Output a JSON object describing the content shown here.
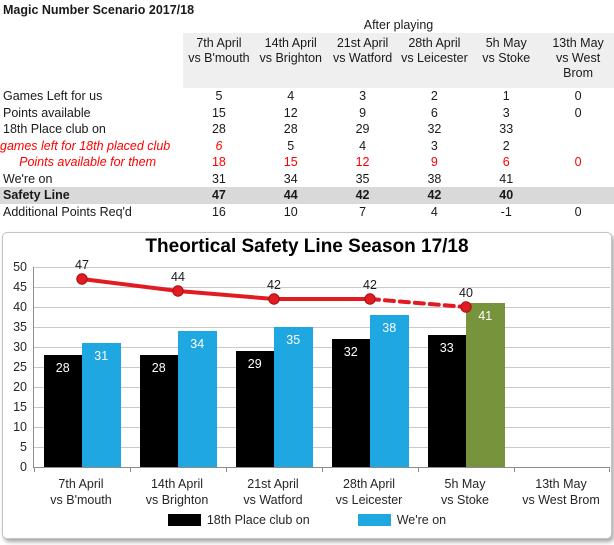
{
  "sheet": {
    "title": "Magic Number Scenario 2017/18"
  },
  "table": {
    "group_header": "After playing",
    "columns": [
      [
        "7th April",
        "vs B'mouth"
      ],
      [
        "14th April",
        "vs Brighton"
      ],
      [
        "21st April",
        "vs Watford"
      ],
      [
        "28th April",
        "vs Leicester"
      ],
      [
        "5h May",
        "vs Stoke"
      ],
      [
        "13th May",
        "vs West",
        "Brom"
      ]
    ],
    "rows": [
      {
        "label": "Games Left for us",
        "values": [
          "5",
          "4",
          "3",
          "2",
          "1",
          "0"
        ]
      },
      {
        "label": "Points available",
        "values": [
          "15",
          "12",
          "9",
          "6",
          "3",
          "0"
        ]
      },
      {
        "label": "18th Place club on",
        "values": [
          "28",
          "28",
          "29",
          "32",
          "33",
          ""
        ]
      },
      {
        "label": "games left for 18th placed club",
        "label_style": "red-italic",
        "values": [
          "6",
          "5",
          "4",
          "3",
          "2",
          ""
        ],
        "value_styles": [
          "red-italic",
          "",
          "",
          "",
          "",
          ""
        ]
      },
      {
        "label": "Points available for them",
        "label_style": "red-italic",
        "values": [
          "18",
          "15",
          "12",
          "9",
          "6",
          "0"
        ],
        "value_styles": [
          "red",
          "red",
          "red",
          "red",
          "red",
          "red"
        ]
      },
      {
        "label": "We're on",
        "values": [
          "31",
          "34",
          "35",
          "38",
          "41",
          ""
        ]
      },
      {
        "label": "Safety Line",
        "row_style": "safety",
        "values": [
          "47",
          "44",
          "42",
          "42",
          "40",
          ""
        ]
      },
      {
        "label": "Additional Points Req'd",
        "values": [
          "16",
          "10",
          "7",
          "4",
          "-1",
          "0"
        ]
      }
    ]
  },
  "chart_data": {
    "type": "bar",
    "subtype": "bar+line combo",
    "title": "Theortical Safety Line Season 17/18",
    "categories": [
      [
        "7th April",
        "vs B'mouth"
      ],
      [
        "14th April",
        "vs Brighton"
      ],
      [
        "21st April",
        "vs Watford"
      ],
      [
        "28th April",
        "vs Leicester"
      ],
      [
        "5h May",
        "vs Stoke"
      ],
      [
        "13th May",
        "vs West Brom"
      ]
    ],
    "series": [
      {
        "name": "18th Place club on",
        "type": "bar",
        "color": "#000000",
        "values": [
          28,
          28,
          29,
          32,
          33,
          null
        ]
      },
      {
        "name": "We're on",
        "type": "bar",
        "color": "#1ea7e1",
        "values": [
          31,
          34,
          35,
          38,
          41,
          null
        ],
        "point_colors": {
          "4": "#77933c"
        }
      },
      {
        "name": "Safety Line",
        "type": "line",
        "color": "#e11b22",
        "values": [
          47,
          44,
          42,
          42,
          40,
          null
        ],
        "dashed_from_index": 3,
        "show_in_legend": false
      }
    ],
    "ylim": [
      0,
      50
    ],
    "ytick_step": 5,
    "grid": true,
    "legend_position": "bottom",
    "legend": [
      {
        "label": "18th Place club on",
        "color": "#000000"
      },
      {
        "label": "We're on",
        "color": "#1ea7e1"
      }
    ]
  },
  "colors": {
    "header_bg": "#efefef",
    "safety_row_bg": "#d9d9d9",
    "red_text": "#ff0000",
    "gridline": "#c9c9c9",
    "axis": "#8c8c8c"
  }
}
